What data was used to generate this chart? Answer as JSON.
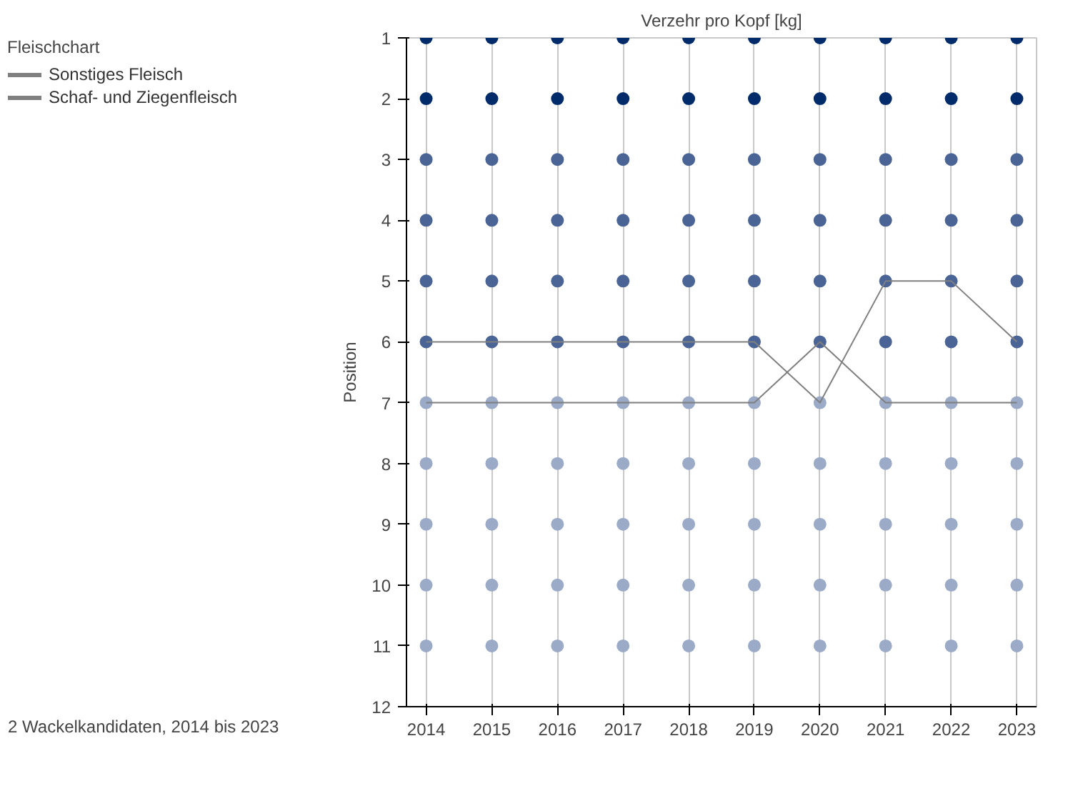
{
  "chart_data": {
    "type": "line",
    "title": "Verzehr pro Kopf [kg]",
    "ylabel": "Position",
    "legend_title": "Fleischchart",
    "x": [
      2014,
      2015,
      2016,
      2017,
      2018,
      2019,
      2020,
      2021,
      2022,
      2023
    ],
    "xlim": [
      2013.7,
      2023.3
    ],
    "xticks": [
      2014,
      2015,
      2016,
      2017,
      2018,
      2019,
      2020,
      2021,
      2022,
      2023
    ],
    "ylim": [
      12,
      1
    ],
    "yticks": [
      1,
      2,
      3,
      4,
      5,
      6,
      7,
      8,
      9,
      10,
      11,
      12
    ],
    "grid": "x",
    "legend": "left",
    "line_style": "solid",
    "series": [
      {
        "type": "scatter",
        "color": "#002b6b",
        "values": [
          1,
          1,
          1,
          1,
          1,
          1,
          1,
          1,
          1,
          1
        ]
      },
      {
        "type": "scatter",
        "color": "#002b6b",
        "values": [
          2,
          2,
          2,
          2,
          2,
          2,
          2,
          2,
          2,
          2
        ]
      },
      {
        "type": "scatter",
        "color": "#4a6496",
        "values": [
          3,
          3,
          3,
          3,
          3,
          3,
          3,
          3,
          3,
          3
        ]
      },
      {
        "type": "scatter",
        "color": "#4a6496",
        "values": [
          4,
          4,
          4,
          4,
          4,
          4,
          4,
          4,
          4,
          4
        ]
      },
      {
        "type": "scatter",
        "color": "#4a6496",
        "values": [
          5,
          5,
          5,
          5,
          5,
          5,
          5,
          5,
          5,
          5
        ]
      },
      {
        "type": "scatter",
        "color": "#4a6496",
        "values": [
          6,
          6,
          6,
          6,
          6,
          6,
          6,
          6,
          6,
          6
        ]
      },
      {
        "type": "scatter",
        "color": "#9aaac7",
        "values": [
          7,
          7,
          7,
          7,
          7,
          7,
          7,
          7,
          7,
          7
        ]
      },
      {
        "type": "scatter",
        "color": "#9aaac7",
        "values": [
          8,
          8,
          8,
          8,
          8,
          8,
          8,
          8,
          8,
          8
        ]
      },
      {
        "type": "scatter",
        "color": "#9aaac7",
        "values": [
          9,
          9,
          9,
          9,
          9,
          9,
          9,
          9,
          9,
          9
        ]
      },
      {
        "type": "scatter",
        "color": "#9aaac7",
        "values": [
          10,
          10,
          10,
          10,
          10,
          10,
          10,
          10,
          10,
          10
        ]
      },
      {
        "type": "scatter",
        "color": "#9aaac7",
        "values": [
          11,
          11,
          11,
          11,
          11,
          11,
          11,
          11,
          11,
          11
        ]
      },
      {
        "name": "Sonstiges Fleisch",
        "color": "#808080",
        "values": [
          6,
          6,
          6,
          6,
          6,
          6,
          7,
          5,
          5,
          6
        ]
      },
      {
        "name": "Schaf- und Ziegenfleisch",
        "color": "#7f7f7f",
        "values": [
          7,
          7,
          7,
          7,
          7,
          7,
          6,
          7,
          7,
          7
        ]
      }
    ],
    "annotations": [
      "2 Wackelkandidaten, 2014 bis 2023"
    ]
  }
}
